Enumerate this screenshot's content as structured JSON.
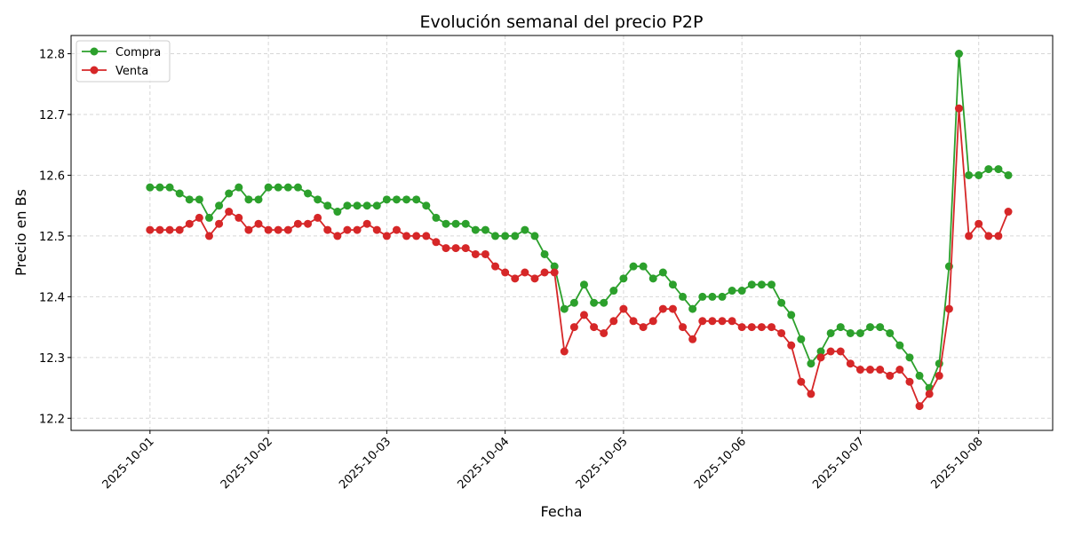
{
  "chart_data": {
    "type": "line",
    "title": "Evolución semanal del precio P2P",
    "xlabel": "Fecha",
    "ylabel": "Precio en Bs",
    "ylim": [
      12.18,
      12.83
    ],
    "xlim": [
      "2025-09-30 08:00",
      "2025-10-08 15:00"
    ],
    "grid": true,
    "legend_position": "top-left",
    "x_tick_labels": [
      "2025-10-01",
      "2025-10-02",
      "2025-10-03",
      "2025-10-04",
      "2025-10-05",
      "2025-10-06",
      "2025-10-07",
      "2025-10-08"
    ],
    "y_tick_labels": [
      "12.2",
      "12.3",
      "12.4",
      "12.5",
      "12.6",
      "12.7",
      "12.8"
    ],
    "x": [
      "2025-10-01 00:00",
      "2025-10-01 02:00",
      "2025-10-01 04:00",
      "2025-10-01 06:00",
      "2025-10-01 08:00",
      "2025-10-01 10:00",
      "2025-10-01 12:00",
      "2025-10-01 14:00",
      "2025-10-01 16:00",
      "2025-10-01 18:00",
      "2025-10-01 20:00",
      "2025-10-01 22:00",
      "2025-10-02 00:00",
      "2025-10-02 02:00",
      "2025-10-02 04:00",
      "2025-10-02 06:00",
      "2025-10-02 08:00",
      "2025-10-02 10:00",
      "2025-10-02 12:00",
      "2025-10-02 14:00",
      "2025-10-02 16:00",
      "2025-10-02 18:00",
      "2025-10-02 20:00",
      "2025-10-02 22:00",
      "2025-10-03 00:00",
      "2025-10-03 02:00",
      "2025-10-03 04:00",
      "2025-10-03 06:00",
      "2025-10-03 08:00",
      "2025-10-03 10:00",
      "2025-10-03 12:00",
      "2025-10-03 14:00",
      "2025-10-03 16:00",
      "2025-10-03 18:00",
      "2025-10-03 20:00",
      "2025-10-03 22:00",
      "2025-10-04 00:00",
      "2025-10-04 02:00",
      "2025-10-04 04:00",
      "2025-10-04 06:00",
      "2025-10-04 08:00",
      "2025-10-04 10:00",
      "2025-10-04 12:00",
      "2025-10-04 14:00",
      "2025-10-04 16:00",
      "2025-10-04 18:00",
      "2025-10-04 20:00",
      "2025-10-04 22:00",
      "2025-10-05 00:00",
      "2025-10-05 02:00",
      "2025-10-05 04:00",
      "2025-10-05 06:00",
      "2025-10-05 08:00",
      "2025-10-05 10:00",
      "2025-10-05 12:00",
      "2025-10-05 14:00",
      "2025-10-05 16:00",
      "2025-10-05 18:00",
      "2025-10-05 20:00",
      "2025-10-05 22:00",
      "2025-10-06 00:00",
      "2025-10-06 02:00",
      "2025-10-06 04:00",
      "2025-10-06 06:00",
      "2025-10-06 08:00",
      "2025-10-06 10:00",
      "2025-10-06 12:00",
      "2025-10-06 14:00",
      "2025-10-06 16:00",
      "2025-10-06 18:00",
      "2025-10-06 20:00",
      "2025-10-06 22:00",
      "2025-10-07 00:00",
      "2025-10-07 02:00",
      "2025-10-07 04:00",
      "2025-10-07 06:00",
      "2025-10-07 08:00",
      "2025-10-07 10:00",
      "2025-10-07 12:00",
      "2025-10-07 14:00",
      "2025-10-07 16:00",
      "2025-10-07 18:00",
      "2025-10-07 20:00",
      "2025-10-07 22:00",
      "2025-10-08 00:00",
      "2025-10-08 02:00",
      "2025-10-08 04:00",
      "2025-10-08 06:00"
    ],
    "series": [
      {
        "name": "Compra",
        "color": "#2ca02c",
        "marker": "circle",
        "values": [
          12.58,
          12.58,
          12.58,
          12.57,
          12.56,
          12.56,
          12.53,
          12.55,
          12.57,
          12.58,
          12.56,
          12.56,
          12.58,
          12.58,
          12.58,
          12.58,
          12.57,
          12.56,
          12.55,
          12.54,
          12.55,
          12.55,
          12.55,
          12.55,
          12.56,
          12.56,
          12.56,
          12.56,
          12.55,
          12.53,
          12.52,
          12.52,
          12.52,
          12.51,
          12.51,
          12.5,
          12.5,
          12.5,
          12.51,
          12.5,
          12.47,
          12.45,
          12.38,
          12.39,
          12.42,
          12.39,
          12.39,
          12.41,
          12.43,
          12.45,
          12.45,
          12.43,
          12.44,
          12.42,
          12.4,
          12.38,
          12.4,
          12.4,
          12.4,
          12.41,
          12.41,
          12.42,
          12.42,
          12.42,
          12.39,
          12.37,
          12.33,
          12.29,
          12.31,
          12.34,
          12.35,
          12.34,
          12.34,
          12.35,
          12.35,
          12.34,
          12.32,
          12.3,
          12.27,
          12.25,
          12.29,
          12.45,
          12.8,
          12.6,
          12.6,
          12.61,
          12.61,
          12.6
        ]
      },
      {
        "name": "Venta",
        "color": "#d62728",
        "marker": "circle",
        "values": [
          12.51,
          12.51,
          12.51,
          12.51,
          12.52,
          12.53,
          12.5,
          12.52,
          12.54,
          12.53,
          12.51,
          12.52,
          12.51,
          12.51,
          12.51,
          12.52,
          12.52,
          12.53,
          12.51,
          12.5,
          12.51,
          12.51,
          12.52,
          12.51,
          12.5,
          12.51,
          12.5,
          12.5,
          12.5,
          12.49,
          12.48,
          12.48,
          12.48,
          12.47,
          12.47,
          12.45,
          12.44,
          12.43,
          12.44,
          12.43,
          12.44,
          12.44,
          12.31,
          12.35,
          12.37,
          12.35,
          12.34,
          12.36,
          12.38,
          12.36,
          12.35,
          12.36,
          12.38,
          12.38,
          12.35,
          12.33,
          12.36,
          12.36,
          12.36,
          12.36,
          12.35,
          12.35,
          12.35,
          12.35,
          12.34,
          12.32,
          12.26,
          12.24,
          12.3,
          12.31,
          12.31,
          12.29,
          12.28,
          12.28,
          12.28,
          12.27,
          12.28,
          12.26,
          12.22,
          12.24,
          12.27,
          12.38,
          12.71,
          12.5,
          12.52,
          12.5,
          12.5,
          12.54
        ]
      }
    ]
  }
}
